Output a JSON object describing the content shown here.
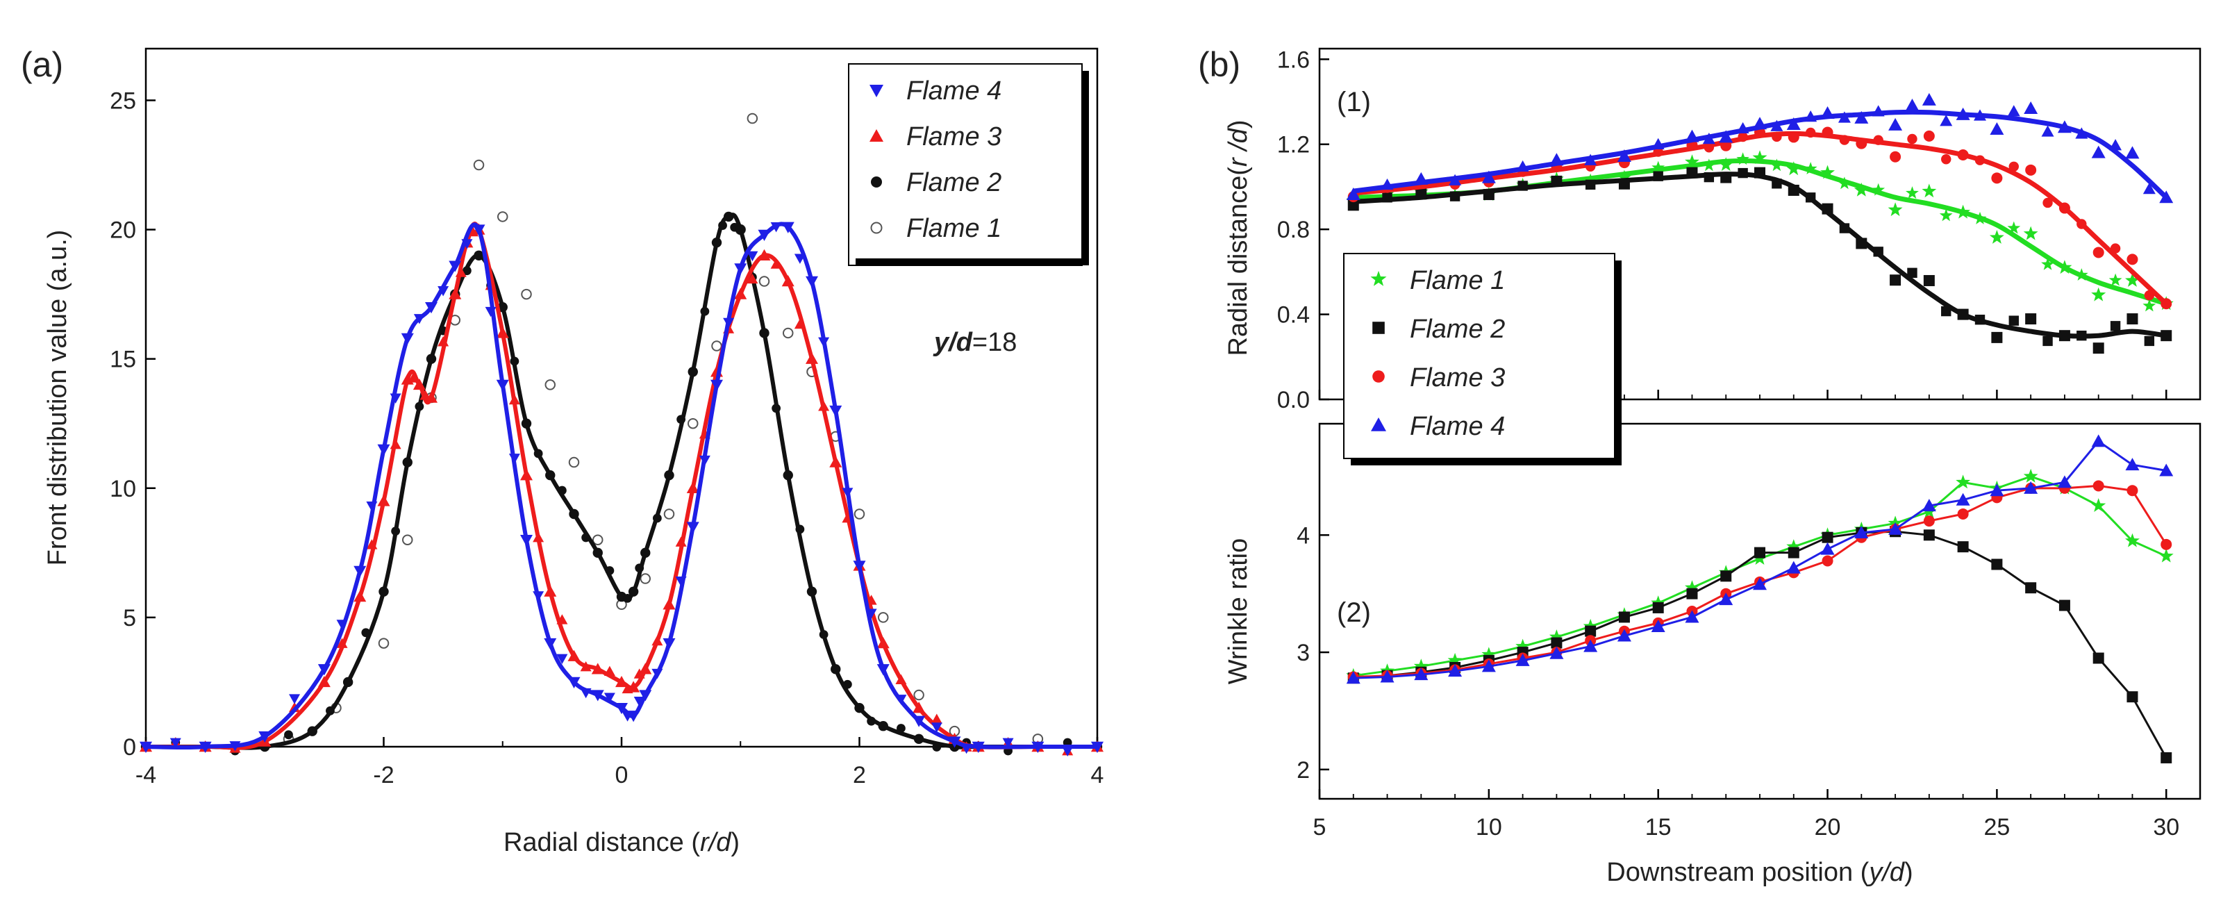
{
  "chart_data": [
    {
      "panel": "(a)",
      "type": "scatter",
      "title": "",
      "xlabel_main": "Radial distance (",
      "xlabel_var": "r/d",
      "xlabel_end": ")",
      "ylabel": "Front distribution value (a.u.)",
      "xlim": [
        -4,
        4
      ],
      "ylim": [
        0,
        27
      ],
      "xticks": [
        "-4",
        "-2",
        "0",
        "2",
        "4"
      ],
      "yticks": [
        "0",
        "5",
        "10",
        "15",
        "20",
        "25"
      ],
      "annotation_var": "y/d",
      "annotation_val": "=18",
      "legend_position": "top-right",
      "series": [
        {
          "name": "Flame 4",
          "color": "#1f1fe6",
          "marker": "triangle-down",
          "x": [
            -4,
            -3.5,
            -3.0,
            -2.5,
            -2.2,
            -2.0,
            -1.8,
            -1.6,
            -1.4,
            -1.2,
            -1.0,
            -0.8,
            -0.6,
            -0.4,
            -0.2,
            0,
            0.1,
            0.2,
            0.4,
            0.6,
            0.8,
            1.0,
            1.2,
            1.4,
            1.6,
            1.8,
            2.0,
            2.2,
            2.5,
            2.8,
            3.0,
            3.5,
            4
          ],
          "y": [
            0,
            0,
            0.4,
            3.0,
            6.8,
            11.5,
            15.8,
            17.0,
            18.6,
            20.0,
            14.0,
            8.0,
            4.0,
            2.5,
            2.0,
            1.5,
            1.2,
            2.0,
            4.0,
            8.5,
            14.0,
            18.5,
            19.8,
            20.1,
            18.0,
            13.0,
            7.0,
            3.0,
            1.0,
            0.2,
            0,
            0,
            0
          ]
        },
        {
          "name": "Flame 3",
          "color": "#ee1c1c",
          "marker": "triangle-up",
          "x": [
            -4,
            -3.5,
            -3.0,
            -2.5,
            -2.2,
            -2.0,
            -1.8,
            -1.7,
            -1.6,
            -1.4,
            -1.3,
            -1.2,
            -1.0,
            -0.8,
            -0.6,
            -0.4,
            -0.2,
            0,
            0.1,
            0.2,
            0.4,
            0.6,
            0.8,
            1.0,
            1.2,
            1.4,
            1.6,
            1.8,
            2.0,
            2.2,
            2.5,
            2.8,
            3.0,
            3.5,
            4
          ],
          "y": [
            0,
            0,
            0.2,
            2.5,
            5.8,
            9.5,
            14.2,
            14.0,
            13.5,
            17.5,
            19.5,
            20.0,
            16.0,
            10.5,
            6.0,
            3.5,
            3.0,
            2.5,
            2.3,
            3.0,
            5.5,
            10.0,
            14.5,
            17.5,
            19.0,
            18.0,
            15.0,
            11.0,
            7.0,
            4.0,
            1.5,
            0.3,
            0,
            0,
            0
          ]
        },
        {
          "name": "Flame 2",
          "color": "#111111",
          "marker": "circle",
          "x": [
            -4,
            -3.5,
            -3.0,
            -2.6,
            -2.3,
            -2.0,
            -1.8,
            -1.6,
            -1.4,
            -1.2,
            -1.0,
            -0.8,
            -0.6,
            -0.4,
            -0.2,
            0,
            0.1,
            0.2,
            0.4,
            0.6,
            0.8,
            0.9,
            1.0,
            1.2,
            1.4,
            1.6,
            1.8,
            2.0,
            2.2,
            2.5,
            2.8,
            3.0,
            3.5,
            4
          ],
          "y": [
            0,
            0,
            0,
            0.6,
            2.5,
            6.0,
            11.0,
            15.0,
            17.5,
            19.0,
            17.0,
            12.5,
            10.5,
            9.0,
            7.5,
            5.8,
            6.0,
            7.5,
            10.5,
            14.5,
            19.5,
            20.5,
            20.0,
            16.0,
            10.5,
            6.0,
            3.0,
            1.5,
            0.8,
            0.3,
            0,
            0,
            0,
            0
          ]
        },
        {
          "name": "Flame 1",
          "color": "#555555",
          "marker": "open-circle",
          "x": [
            -2.8,
            -2.4,
            -2.0,
            -1.8,
            -1.6,
            -1.4,
            -1.2,
            -1.0,
            -0.8,
            -0.6,
            -0.4,
            -0.2,
            0,
            0.2,
            0.4,
            0.6,
            0.8,
            1.0,
            1.1,
            1.2,
            1.4,
            1.6,
            1.8,
            2.0,
            2.2,
            2.5,
            2.8,
            3.5
          ],
          "y": [
            0.3,
            1.5,
            4.0,
            8.0,
            13.5,
            16.5,
            22.5,
            20.5,
            17.5,
            14.0,
            11.0,
            8.0,
            5.5,
            6.5,
            9.0,
            12.5,
            15.5,
            20.0,
            24.3,
            18.0,
            16.0,
            14.5,
            12.0,
            9.0,
            5.0,
            2.0,
            0.6,
            0.3
          ]
        }
      ],
      "outlier_labels": []
    },
    {
      "panel": "(b)",
      "subpanel_label": "(1)",
      "type": "scatter",
      "ylabel_main": "Radial distance(",
      "ylabel_var": "r /d",
      "ylabel_end": ")",
      "xlim": [
        5,
        31
      ],
      "ylim": [
        0,
        1.65
      ],
      "yticks": [
        "0.0",
        "0.4",
        "0.8",
        "1.2",
        "1.6"
      ],
      "legend_position": "left-middle",
      "series": [
        {
          "name": "Flame 1",
          "color": "#22dd22",
          "marker": "star",
          "x": [
            6,
            8,
            10,
            12,
            14,
            16,
            17,
            18,
            19,
            20,
            21,
            22,
            23,
            24,
            25,
            26,
            27,
            28,
            29,
            30
          ],
          "y": [
            0.95,
            0.96,
            0.98,
            1.02,
            1.06,
            1.1,
            1.12,
            1.12,
            1.1,
            1.05,
            1.0,
            0.95,
            0.92,
            0.88,
            0.82,
            0.72,
            0.62,
            0.55,
            0.5,
            0.45
          ]
        },
        {
          "name": "Flame 2",
          "color": "#111111",
          "marker": "square",
          "x": [
            6,
            8,
            10,
            12,
            14,
            16,
            17,
            18,
            19,
            20,
            21,
            22,
            23,
            24,
            25,
            26,
            27,
            28,
            29,
            30
          ],
          "y": [
            0.93,
            0.95,
            0.98,
            1.01,
            1.03,
            1.05,
            1.06,
            1.05,
            1.0,
            0.88,
            0.75,
            0.62,
            0.5,
            0.4,
            0.35,
            0.32,
            0.3,
            0.3,
            0.32,
            0.3
          ]
        },
        {
          "name": "Flame 3",
          "color": "#ee1c1c",
          "marker": "circle",
          "x": [
            6,
            8,
            10,
            12,
            14,
            16,
            17,
            18,
            19,
            20,
            21,
            22,
            23,
            24,
            25,
            26,
            27,
            28,
            29,
            30
          ],
          "y": [
            0.97,
            1.0,
            1.04,
            1.08,
            1.13,
            1.18,
            1.21,
            1.24,
            1.25,
            1.24,
            1.22,
            1.2,
            1.18,
            1.15,
            1.1,
            1.02,
            0.9,
            0.75,
            0.6,
            0.45
          ]
        },
        {
          "name": "Flame 4",
          "color": "#1f1fe6",
          "marker": "triangle-up",
          "x": [
            6,
            8,
            10,
            12,
            14,
            16,
            17,
            18,
            19,
            20,
            21,
            22,
            23,
            24,
            25,
            26,
            27,
            28,
            29,
            30
          ],
          "y": [
            0.98,
            1.02,
            1.06,
            1.11,
            1.16,
            1.22,
            1.25,
            1.28,
            1.31,
            1.33,
            1.34,
            1.35,
            1.35,
            1.34,
            1.33,
            1.31,
            1.28,
            1.22,
            1.1,
            0.95
          ]
        }
      ]
    },
    {
      "panel": "(b)",
      "subpanel_label": "(2)",
      "type": "line",
      "xlabel_main": "Downstream position (",
      "xlabel_var": "y/d",
      "xlabel_end": ")",
      "ylabel": "Wrinkle ratio",
      "xlim": [
        5,
        31
      ],
      "ylim": [
        1.75,
        4.95
      ],
      "xticks": [
        "5",
        "10",
        "15",
        "20",
        "25",
        "30"
      ],
      "yticks": [
        "2",
        "3",
        "4"
      ],
      "series": [
        {
          "name": "Flame 1",
          "color": "#22dd22",
          "marker": "star",
          "x": [
            6,
            7,
            8,
            9,
            10,
            11,
            12,
            13,
            14,
            15,
            16,
            17,
            18,
            19,
            20,
            21,
            22,
            23,
            24,
            25,
            26,
            27,
            28,
            29,
            30
          ],
          "y": [
            2.8,
            2.84,
            2.88,
            2.93,
            2.98,
            3.05,
            3.13,
            3.22,
            3.32,
            3.42,
            3.55,
            3.68,
            3.8,
            3.9,
            4.0,
            4.05,
            4.1,
            4.2,
            4.45,
            4.4,
            4.5,
            4.4,
            4.25,
            3.95,
            3.82
          ]
        },
        {
          "name": "Flame 2",
          "color": "#111111",
          "marker": "square",
          "x": [
            6,
            7,
            8,
            9,
            10,
            11,
            12,
            13,
            14,
            15,
            16,
            17,
            18,
            19,
            20,
            21,
            22,
            23,
            24,
            25,
            26,
            27,
            28,
            29,
            30
          ],
          "y": [
            2.78,
            2.8,
            2.83,
            2.87,
            2.93,
            3.0,
            3.08,
            3.18,
            3.3,
            3.38,
            3.5,
            3.65,
            3.85,
            3.85,
            3.98,
            4.02,
            4.03,
            4.0,
            3.9,
            3.75,
            3.55,
            3.4,
            2.95,
            2.62,
            2.1
          ]
        },
        {
          "name": "Flame 3",
          "color": "#ee1c1c",
          "marker": "circle",
          "x": [
            6,
            7,
            8,
            9,
            10,
            11,
            12,
            13,
            14,
            15,
            16,
            17,
            18,
            19,
            20,
            21,
            22,
            23,
            24,
            25,
            26,
            27,
            28,
            29,
            30
          ],
          "y": [
            2.79,
            2.8,
            2.82,
            2.85,
            2.9,
            2.95,
            3.0,
            3.1,
            3.18,
            3.25,
            3.35,
            3.5,
            3.6,
            3.68,
            3.78,
            3.98,
            4.05,
            4.12,
            4.18,
            4.32,
            4.4,
            4.4,
            4.42,
            4.38,
            3.92
          ]
        },
        {
          "name": "Flame 4",
          "color": "#1f1fe6",
          "marker": "triangle-up",
          "x": [
            6,
            7,
            8,
            9,
            10,
            11,
            12,
            13,
            14,
            15,
            16,
            17,
            18,
            19,
            20,
            21,
            22,
            23,
            24,
            25,
            26,
            27,
            28,
            29,
            30
          ],
          "y": [
            2.78,
            2.79,
            2.81,
            2.84,
            2.88,
            2.93,
            2.99,
            3.05,
            3.14,
            3.22,
            3.3,
            3.45,
            3.58,
            3.72,
            3.88,
            4.02,
            4.05,
            4.25,
            4.3,
            4.38,
            4.4,
            4.45,
            4.8,
            4.6,
            4.55
          ]
        }
      ]
    }
  ],
  "labels": {
    "panel_a": "(a)",
    "panel_b": "(b)"
  }
}
